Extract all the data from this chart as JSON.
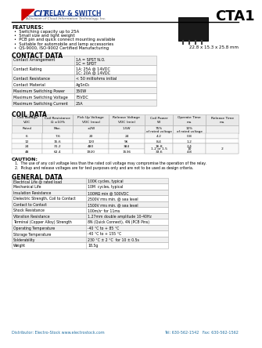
{
  "title": "CTA1",
  "logo_sub": "A Division of Cloud Information Technology, Inc.",
  "dimensions": "22.8 x 15.3 x 25.8 mm",
  "features_title": "FEATURES:",
  "features": [
    "Switching capacity up to 25A",
    "Small size and light weight",
    "PCB pin and quick connect mounting available",
    "Suitable for automobile and lamp accessories",
    "QS-9000, ISO-9002 Certified Manufacturing"
  ],
  "contact_title": "CONTACT DATA",
  "contact_data": [
    [
      "Contact Arrangement",
      "1A = SPST N.O.\n1C = SPDT"
    ],
    [
      "Contact Rating",
      "1A: 25A @ 14VDC\n1C: 20A @ 14VDC"
    ],
    [
      "Contact Resistance",
      "< 50 milliohms initial"
    ],
    [
      "Contact Material",
      "AgSnO₂"
    ],
    [
      "Maximum Switching Power",
      "350W"
    ],
    [
      "Maximum Switching Voltage",
      "75VDC"
    ],
    [
      "Maximum Switching Current",
      "25A"
    ]
  ],
  "coil_title": "COIL DATA",
  "coil_headers": [
    "Coil Voltage\nVDC",
    "Coil Resistance\nΩ ±10%",
    "Pick Up Voltage\nVDC (max)",
    "Release Voltage\nVDC (min)",
    "Coil Power\nW",
    "Operate Time\nms",
    "Release Time\nms"
  ],
  "coil_sub1": [
    "Rated",
    "Max.",
    "±2W",
    "1.5W",
    "75%\nof rated voltage",
    "10%\nof rated voltage",
    ""
  ],
  "coil_rows": [
    [
      "6",
      "7.6",
      "20",
      "24",
      "4.2",
      "0.8",
      ""
    ],
    [
      "12",
      "15.6",
      "120",
      "96",
      "8.4",
      "1.2",
      ""
    ],
    [
      "24",
      "31.2",
      "480",
      "384",
      "16.8",
      "2.4",
      ""
    ],
    [
      "48",
      "62.4",
      "1920",
      "1536",
      "33.6",
      "4.8",
      ""
    ]
  ],
  "coil_merged_col4": "1.2 or 1.5",
  "coil_merged_col5": "10",
  "coil_merged_col6": "2",
  "caution_title": "CAUTION:",
  "caution": [
    "The use of any coil voltage less than the rated coil voltage may compromise the operation of the relay.",
    "Pickup and release voltages are for test purposes only and are not to be used as design criteria."
  ],
  "general_title": "GENERAL DATA",
  "general_data": [
    [
      "Electrical Life @ rated load",
      "100K cycles, typical"
    ],
    [
      "Mechanical Life",
      "10M  cycles, typical"
    ],
    [
      "Insulation Resistance",
      "100MΩ min @ 500VDC"
    ],
    [
      "Dielectric Strength, Coil to Contact",
      "2500V rms min. @ sea level"
    ],
    [
      "Contact to Contact",
      "1500V rms min. @ sea level"
    ],
    [
      "Shock Resistance",
      "100m/s² for 11ms"
    ],
    [
      "Vibration Resistance",
      "1.27mm double amplitude 10-40Hz"
    ],
    [
      "Terminal (Copper Alloy) Strength",
      "8N (Quick Connect), 4N (PCB Pins)"
    ],
    [
      "Operating Temperature",
      "-40 °C to + 85 °C"
    ],
    [
      "Storage Temperature",
      "-40 °C to + 155 °C"
    ],
    [
      "Solderability",
      "230 °C ± 2 °C  for 10 ± 0.5s"
    ],
    [
      "Weight",
      "18.5g"
    ]
  ],
  "footer_left": "Distributor: Electro-Stock www.electrostock.com",
  "footer_right": "Tel: 630-562-1542   Fax: 630-562-1562",
  "bg_color": "#ffffff",
  "table_border": "#aaaaaa",
  "blue_color": "#1a5276",
  "logo_blue": "#1a3c8f",
  "red_color": "#cc0000",
  "footer_blue": "#2471a3"
}
